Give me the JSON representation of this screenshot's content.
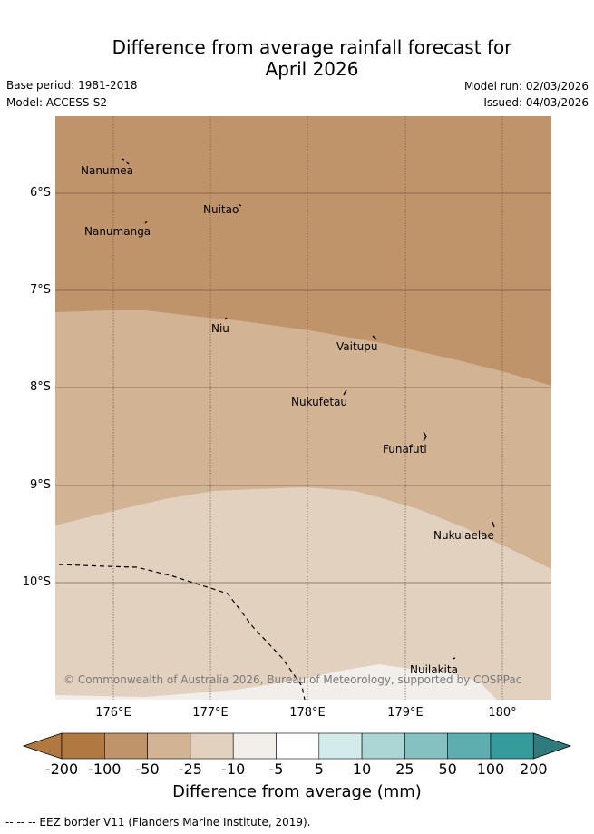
{
  "title_line1": "Difference from average rainfall forecast for",
  "title_line2": "April 2026",
  "base_period": "Base period: 1981-2018",
  "model": "Model: ACCESS-S2",
  "model_run": "Model run: 02/03/2026",
  "issued": "Issued: 04/03/2026",
  "copyright": "© Commonwealth of Australia 2026, Bureau of Meteorology, supported by COSPPac",
  "islands": {
    "nanumea": "Nanumea",
    "nuitao": "Nuitao",
    "nanumanga": "Nanumanga",
    "niu": "Niu",
    "vaitupu": "Vaitupu",
    "nukufetau": "Nukufetau",
    "funafuti": "Funafuti",
    "nukulaelae": "Nukulaelae",
    "nuilakita": "Nuilakita"
  },
  "y_axis": [
    "6°S",
    "7°S",
    "8°S",
    "9°S",
    "10°S"
  ],
  "x_axis": [
    "176°E",
    "177°E",
    "178°E",
    "179°E",
    "180°"
  ],
  "colorbar": {
    "ticks": [
      "-200",
      "-100",
      "-50",
      "-25",
      "-10",
      "-5",
      "5",
      "10",
      "25",
      "50",
      "100",
      "200"
    ],
    "colors": [
      "#b07941",
      "#c0946a",
      "#d2b394",
      "#e3d1bf",
      "#f2eee9",
      "#ffffff",
      "#d4ebeb",
      "#acd6d6",
      "#86c1c1",
      "#5daeae",
      "#369b9b",
      "#2f7b7b"
    ],
    "label": "Difference from average (mm)"
  },
  "legend_footer": "-- -- -- EEZ border V11 (Flanders Marine Institute, 2019)."
}
